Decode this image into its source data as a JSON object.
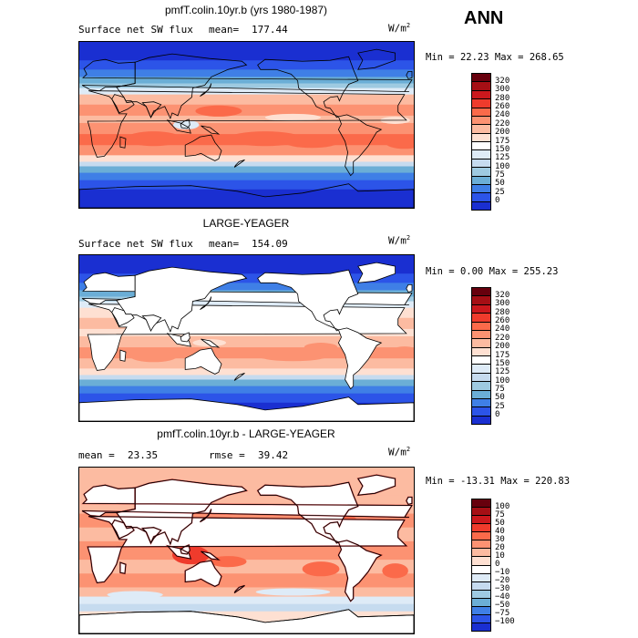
{
  "season": "ANN",
  "panels": [
    {
      "title": "pmfT.colin.10yr.b (yrs 1980-1987)",
      "variable": "Surface net SW flux",
      "stat1_label": "mean=",
      "stat1_value": "177.44",
      "stat2_label": "",
      "stat2_value": "",
      "units": "W/m",
      "units_exp": "2",
      "min_label": "Min =",
      "min_value": "22.23",
      "max_label": "Max =",
      "max_value": "268.65",
      "land_masked": false,
      "colorbar": {
        "labels": [
          "320",
          "300",
          "280",
          "260",
          "240",
          "220",
          "200",
          "175",
          "150",
          "125",
          "100",
          "75",
          "50",
          "25",
          "0"
        ],
        "colors": [
          "#67000d",
          "#a50f15",
          "#cb181d",
          "#ef3b2c",
          "#fb6a4a",
          "#fc9272",
          "#fcbba1",
          "#fee0d2",
          "#ffffff",
          "#deebf7",
          "#c6dbef",
          "#9ecae1",
          "#6baed6",
          "#3f7fe6",
          "#2c54e8",
          "#1a2fd1",
          "#0a0a8c"
        ]
      }
    },
    {
      "title": "LARGE-YEAGER",
      "variable": "Surface net SW flux",
      "stat1_label": "mean=",
      "stat1_value": "154.09",
      "stat2_label": "",
      "stat2_value": "",
      "units": "W/m",
      "units_exp": "2",
      "min_label": "Min =",
      "min_value": "0.00",
      "max_label": "Max =",
      "max_value": "255.23",
      "land_masked": true,
      "colorbar": {
        "labels": [
          "320",
          "300",
          "280",
          "260",
          "240",
          "220",
          "200",
          "175",
          "150",
          "125",
          "100",
          "75",
          "50",
          "25",
          "0"
        ],
        "colors": [
          "#67000d",
          "#a50f15",
          "#cb181d",
          "#ef3b2c",
          "#fb6a4a",
          "#fc9272",
          "#fcbba1",
          "#fee0d2",
          "#ffffff",
          "#deebf7",
          "#c6dbef",
          "#9ecae1",
          "#6baed6",
          "#3f7fe6",
          "#2c54e8",
          "#1a2fd1",
          "#0a0a8c"
        ]
      }
    },
    {
      "title": "pmfT.colin.10yr.b - LARGE-YEAGER",
      "variable": "",
      "stat1_label": "mean =",
      "stat1_value": "23.35",
      "stat2_label": "rmse =",
      "stat2_value": "39.42",
      "units": "W/m",
      "units_exp": "2",
      "min_label": "Min =",
      "min_value": "-13.31",
      "max_label": "Max =",
      "max_value": "220.83",
      "land_masked": true,
      "colorbar": {
        "labels": [
          "100",
          "75",
          "50",
          "40",
          "30",
          "20",
          "10",
          "0",
          "−10",
          "−20",
          "−30",
          "−40",
          "−50",
          "−75",
          "−100"
        ],
        "colors": [
          "#67000d",
          "#a50f15",
          "#cb181d",
          "#ef3b2c",
          "#fb6a4a",
          "#fc9272",
          "#fcbba1",
          "#fee0d2",
          "#ffffff",
          "#deebf7",
          "#c6dbef",
          "#9ecae1",
          "#6baed6",
          "#3f7fe6",
          "#2c54e8",
          "#1a2fd1",
          "#0a0a8c"
        ]
      }
    }
  ]
}
